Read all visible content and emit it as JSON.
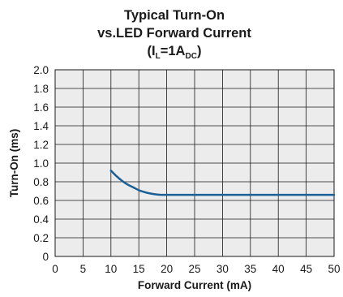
{
  "chart_data": {
    "type": "line",
    "title": {
      "line1": "Typical Turn-On",
      "line2": "vs.LED Forward Current",
      "line3_main": "(I",
      "line3_sub1": "L",
      "line3_mid": "=1A",
      "line3_sub2": "DC",
      "line3_end": ")"
    },
    "xlabel": "Forward Current (mA)",
    "ylabel": "Turn-On (ms)",
    "xlim": [
      0,
      50
    ],
    "ylim": [
      0,
      2.0
    ],
    "x_ticks": [
      "0",
      "5",
      "10",
      "15",
      "20",
      "25",
      "30",
      "35",
      "40",
      "45",
      "50"
    ],
    "y_ticks": [
      "0",
      "0.2",
      "0.4",
      "0.6",
      "0.8",
      "1.0",
      "1.2",
      "1.4",
      "1.6",
      "1.8",
      "2.0"
    ],
    "grid": true,
    "series": [
      {
        "color": "#1a5f96",
        "x": [
          10,
          11,
          12,
          13,
          14,
          15,
          16,
          17,
          18,
          19,
          20,
          25,
          30,
          35,
          40,
          45,
          50
        ],
        "y": [
          0.92,
          0.86,
          0.81,
          0.77,
          0.74,
          0.71,
          0.69,
          0.675,
          0.665,
          0.66,
          0.66,
          0.66,
          0.66,
          0.66,
          0.66,
          0.66,
          0.66
        ]
      }
    ]
  }
}
